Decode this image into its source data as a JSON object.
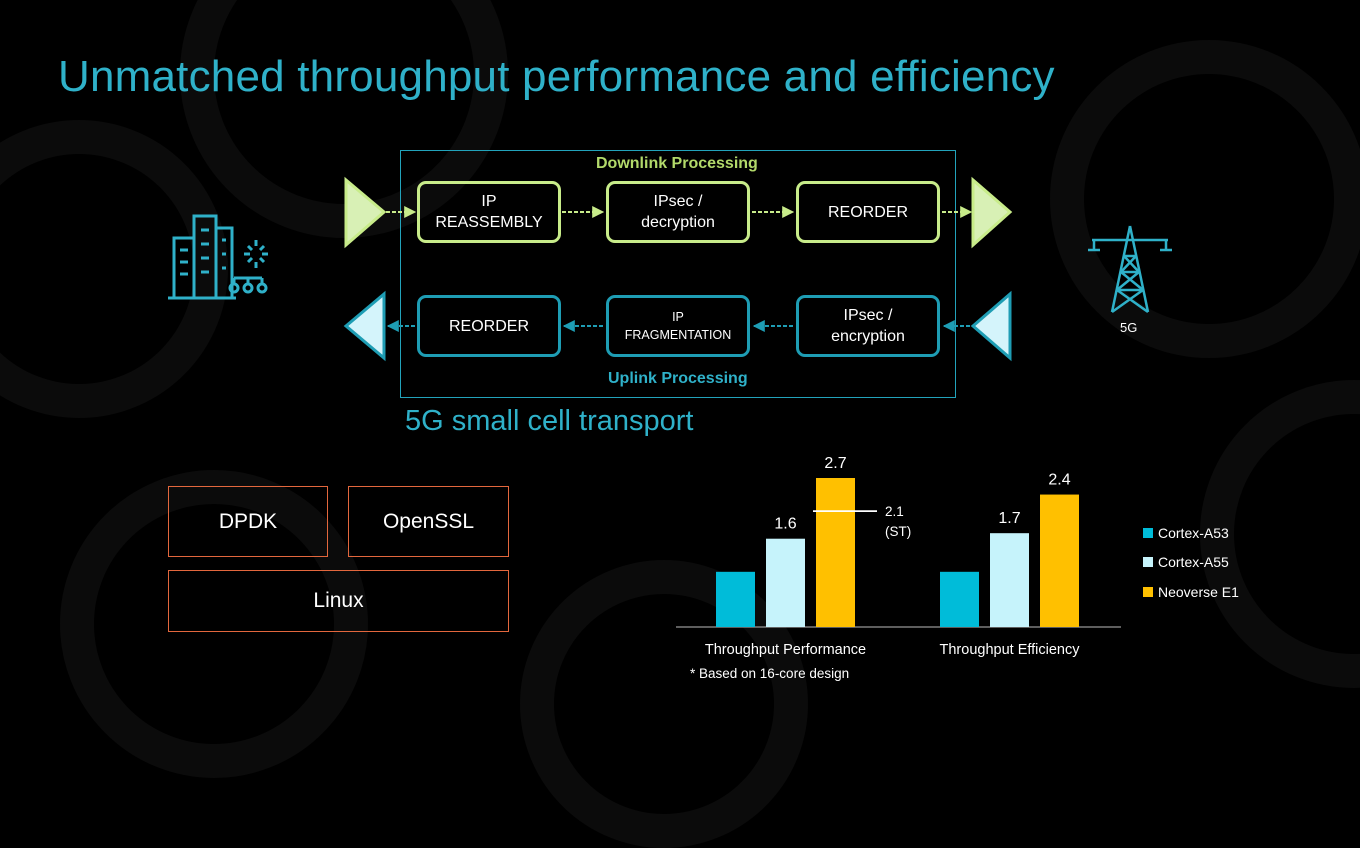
{
  "title": "Unmatched throughput performance and efficiency",
  "diagram": {
    "downlink_label": "Downlink Processing",
    "uplink_label": "Uplink Processing",
    "downlink_steps": [
      "IP\nREASSEMBLY",
      "IPsec /\ndecryption",
      "REORDER"
    ],
    "uplink_steps": [
      "REORDER",
      "IP\nFRAGMENTATION",
      "IPsec /\nencryption"
    ],
    "subtitle": "5G small cell transport",
    "tower_label": "5G",
    "colors": {
      "downlink": "#c8ec8a",
      "uplink": "#1e9db4",
      "title": "#2fb1c9"
    },
    "icons": {
      "left": "city-buildings-icon",
      "right": "cell-tower-icon"
    }
  },
  "software_stack": {
    "items": [
      "DPDK",
      "OpenSSL",
      "Linux"
    ],
    "border_color": "#e3673d"
  },
  "chart_data": {
    "type": "bar",
    "categories": [
      "Throughput Performance",
      "Throughput Efficiency"
    ],
    "series": [
      {
        "name": "Cortex-A53",
        "color": "#00bcd9",
        "values": [
          1.0,
          1.0
        ],
        "labels": [
          "",
          ""
        ]
      },
      {
        "name": "Cortex-A55",
        "color": "#c6f3fb",
        "values": [
          1.6,
          1.7
        ],
        "labels": [
          "1.6",
          "1.7"
        ]
      },
      {
        "name": "Neoverse E1",
        "color": "#ffc000",
        "values": [
          2.7,
          2.4
        ],
        "labels": [
          "2.7",
          "2.4"
        ]
      }
    ],
    "annotation": {
      "value": 2.1,
      "line1": "2.1",
      "line2": "(ST)"
    },
    "ylim": [
      0,
      2.7
    ],
    "legend_position": "right",
    "grid": false
  },
  "footnote": "* Based on 16-core design"
}
